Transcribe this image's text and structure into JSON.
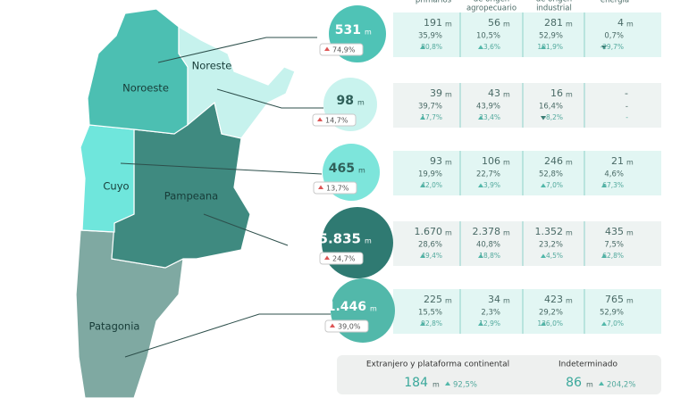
{
  "header": {
    "columns": [
      [
        "primarios"
      ],
      [
        "de origen",
        "agropecuario"
      ],
      [
        "de origen",
        "industrial"
      ],
      [
        "energía"
      ]
    ]
  },
  "unit": "m",
  "map": {
    "regions": [
      "Noreste",
      "Noroeste",
      "Cuyo",
      "Pampeana",
      "Patagonia"
    ]
  },
  "rows": [
    {
      "total": "531",
      "change": "74,9%",
      "cells": [
        {
          "value": "191",
          "share": "35,9%",
          "change": "80,8%"
        },
        {
          "value": "56",
          "share": "10,5%",
          "change": "3,6%"
        },
        {
          "value": "281",
          "share": "52,9%",
          "change": "101,9%"
        },
        {
          "value": "4",
          "share": "0,7%",
          "change": "-29,7%"
        }
      ]
    },
    {
      "total": "98",
      "change": "14,7%",
      "cells": [
        {
          "value": "39",
          "share": "39,7%",
          "change": "17,7%"
        },
        {
          "value": "43",
          "share": "43,9%",
          "change": "23,4%"
        },
        {
          "value": "16",
          "share": "16,4%",
          "change": "-8,2%"
        },
        {
          "value": "-",
          "share": "-",
          "change": "-"
        }
      ]
    },
    {
      "total": "465",
      "change": "13,7%",
      "cells": [
        {
          "value": "93",
          "share": "19,9%",
          "change": "42,0%"
        },
        {
          "value": "106",
          "share": "22,7%",
          "change": "3,9%"
        },
        {
          "value": "246",
          "share": "52,8%",
          "change": "7,0%"
        },
        {
          "value": "21",
          "share": "4,6%",
          "change": "67,3%"
        }
      ]
    },
    {
      "total": "5.835",
      "change": "24,7%",
      "cells": [
        {
          "value": "1.670",
          "share": "28,6%",
          "change": "49,4%"
        },
        {
          "value": "2.378",
          "share": "40,8%",
          "change": "18,8%"
        },
        {
          "value": "1.352",
          "share": "23,2%",
          "change": "4,5%"
        },
        {
          "value": "435",
          "share": "7,5%",
          "change": "62,8%"
        }
      ]
    },
    {
      "total": "1.446",
      "change": "39,0%",
      "cells": [
        {
          "value": "225",
          "share": "15,5%",
          "change": "92,8%"
        },
        {
          "value": "34",
          "share": "2,3%",
          "change": "12,9%"
        },
        {
          "value": "423",
          "share": "29,2%",
          "change": "136,0%"
        },
        {
          "value": "765",
          "share": "52,9%",
          "change": "7,0%"
        }
      ]
    }
  ],
  "footer": [
    {
      "label": "Extranjero y plataforma continental",
      "value": "184",
      "change": "92,5%"
    },
    {
      "label": "Indeterminado",
      "value": "86",
      "change": "204,2%"
    }
  ]
}
